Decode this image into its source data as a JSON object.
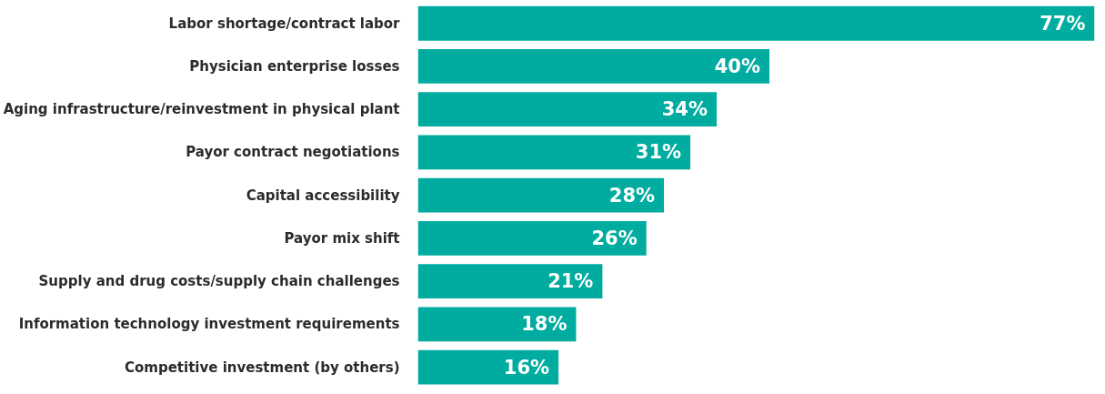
{
  "chart_data": {
    "type": "bar",
    "orientation": "horizontal",
    "categories": [
      "Labor shortage/contract labor",
      "Physician enterprise losses",
      "Aging infrastructure/reinvestment in physical plant",
      "Payor contract negotiations",
      "Capital accessibility",
      "Payor mix shift",
      "Supply and drug costs/supply chain challenges",
      "Information technology investment requirements",
      "Competitive investment (by others)"
    ],
    "values": [
      77,
      40,
      34,
      31,
      28,
      26,
      21,
      18,
      16
    ],
    "value_labels": [
      "77%",
      "40%",
      "34%",
      "31%",
      "28%",
      "26%",
      "21%",
      "18%",
      "16%"
    ],
    "color": "#00ab9f",
    "tick_labels": "y",
    "grid": false
  }
}
